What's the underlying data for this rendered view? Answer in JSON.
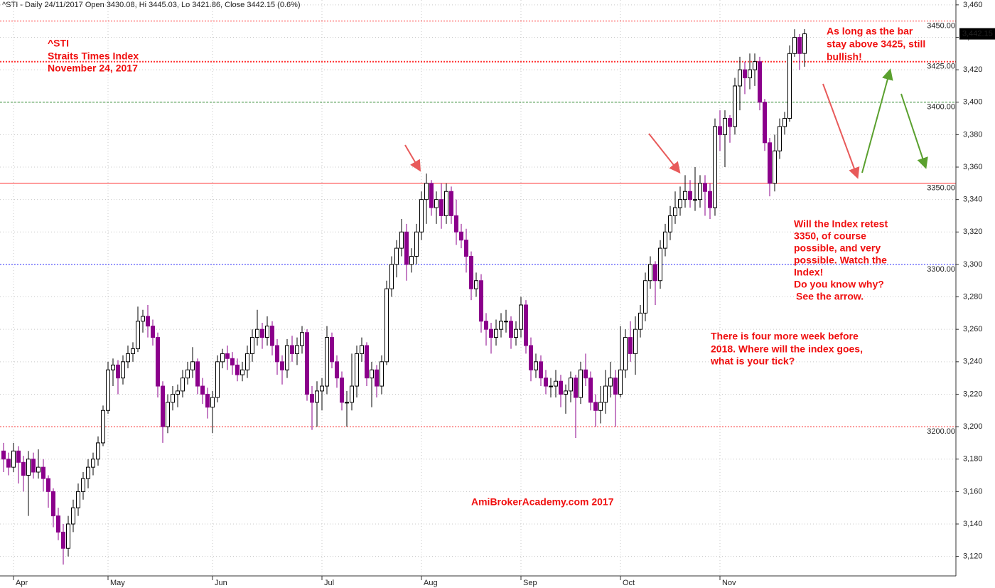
{
  "chart_data": {
    "type": "candlestick",
    "title": "^STI - Daily 24/11/2017 Open 3430.08, Hi 3445.03, Lo 3421.86, Close 3442.15 (0.6%)",
    "categories": [
      null,
      null,
      "Apr",
      null,
      null,
      null,
      null,
      null,
      null,
      null,
      null,
      null,
      null,
      null,
      null,
      null,
      null,
      null,
      null,
      null,
      null,
      "May",
      null,
      null,
      null,
      null,
      null,
      null,
      null,
      null,
      null,
      null,
      null,
      null,
      null,
      null,
      null,
      null,
      null,
      null,
      null,
      null,
      "Jun",
      null,
      null,
      null,
      null,
      null,
      null,
      null,
      null,
      null,
      null,
      null,
      null,
      null,
      null,
      null,
      null,
      null,
      null,
      null,
      null,
      null,
      "Jul",
      null,
      null,
      null,
      null,
      null,
      null,
      null,
      null,
      null,
      null,
      null,
      null,
      null,
      null,
      null,
      null,
      null,
      null,
      null,
      "Aug",
      null,
      null,
      null,
      null,
      null,
      null,
      null,
      null,
      null,
      null,
      null,
      null,
      null,
      null,
      null,
      null,
      null,
      null,
      null,
      "Sep",
      null,
      null,
      null,
      null,
      null,
      null,
      null,
      null,
      null,
      null,
      null,
      null,
      null,
      null,
      null,
      null,
      null,
      null,
      null,
      "Oct",
      null,
      null,
      null,
      null,
      null,
      null,
      null,
      null,
      null,
      null,
      null,
      null,
      null,
      null,
      null,
      null,
      null,
      null,
      null,
      "Nov",
      null,
      null,
      null,
      null,
      null,
      null,
      null,
      null,
      null,
      null,
      null,
      null,
      null,
      null,
      null,
      null,
      null
    ],
    "open": [
      3185,
      3180,
      3175,
      3185,
      3178,
      3170,
      3180,
      3172,
      3175,
      3168,
      3160,
      3145,
      3135,
      3125,
      3140,
      3150,
      3160,
      3168,
      3175,
      3180,
      3190,
      3210,
      3235,
      3238,
      3230,
      3240,
      3245,
      3248,
      3265,
      3268,
      3262,
      3255,
      3225,
      3200,
      3215,
      3220,
      3222,
      3230,
      3235,
      3240,
      3225,
      3220,
      3212,
      3218,
      3240,
      3245,
      3242,
      3238,
      3232,
      3235,
      3245,
      3255,
      3260,
      3255,
      3262,
      3250,
      3240,
      3235,
      3250,
      3245,
      3250,
      3258,
      3220,
      3215,
      3222,
      3225,
      3255,
      3240,
      3230,
      3215,
      3215,
      3225,
      3245,
      3250,
      3230,
      3235,
      3225,
      3240,
      3285,
      3300,
      3310,
      3320,
      3300,
      3305,
      3320,
      3340,
      3350,
      3335,
      3340,
      3330,
      3345,
      3330,
      3320,
      3315,
      3305,
      3285,
      3290,
      3265,
      3260,
      3255,
      3260,
      3265,
      3265,
      3255,
      3260,
      3275,
      3250,
      3235,
      3240,
      3230,
      3225,
      3225,
      3228,
      3220,
      3222,
      3230,
      3218,
      3235,
      3230,
      3215,
      3210,
      3215,
      3225,
      3230,
      3220,
      3235,
      3255,
      3245,
      3260,
      3270,
      3290,
      3300,
      3290,
      3310,
      3320,
      3330,
      3335,
      3340,
      3345,
      3340,
      3340,
      3350,
      3345,
      3335,
      3385,
      3380,
      3390,
      3385,
      3410,
      3420,
      3415,
      3420,
      3425,
      3400,
      3375,
      3350,
      3370,
      3385,
      3390,
      3430,
      3440,
      3430.08
    ],
    "high": [
      3190,
      3184,
      3190,
      3188,
      3182,
      3185,
      3184,
      3186,
      3180,
      3170,
      3162,
      3150,
      3140,
      3145,
      3155,
      3165,
      3172,
      3180,
      3184,
      3194,
      3213,
      3240,
      3242,
      3241,
      3244,
      3250,
      3252,
      3274,
      3272,
      3275,
      3266,
      3258,
      3228,
      3220,
      3225,
      3226,
      3235,
      3240,
      3249,
      3242,
      3230,
      3224,
      3222,
      3244,
      3248,
      3250,
      3246,
      3242,
      3240,
      3250,
      3260,
      3272,
      3264,
      3268,
      3265,
      3254,
      3244,
      3254,
      3256,
      3255,
      3262,
      3260,
      3225,
      3228,
      3230,
      3262,
      3258,
      3244,
      3234,
      3222,
      3245,
      3250,
      3255,
      3252,
      3240,
      3238,
      3244,
      3290,
      3305,
      3315,
      3328,
      3325,
      3310,
      3325,
      3345,
      3356,
      3352,
      3345,
      3350,
      3350,
      3348,
      3340,
      3325,
      3322,
      3308,
      3295,
      3294,
      3270,
      3264,
      3266,
      3270,
      3272,
      3268,
      3265,
      3280,
      3278,
      3255,
      3245,
      3244,
      3235,
      3230,
      3235,
      3232,
      3226,
      3234,
      3232,
      3240,
      3245,
      3234,
      3220,
      3225,
      3235,
      3240,
      3235,
      3262,
      3260,
      3265,
      3268,
      3275,
      3295,
      3305,
      3302,
      3315,
      3325,
      3336,
      3345,
      3348,
      3355,
      3352,
      3360,
      3355,
      3355,
      3350,
      3390,
      3395,
      3395,
      3392,
      3415,
      3428,
      3425,
      3430,
      3430,
      3428,
      3402,
      3378,
      3380,
      3390,
      3394,
      3435,
      3445,
      3442,
      3445.03
    ],
    "low": [
      3172,
      3170,
      3172,
      3165,
      3160,
      3145,
      3168,
      3168,
      3160,
      3150,
      3138,
      3130,
      3115,
      3120,
      3135,
      3145,
      3155,
      3162,
      3170,
      3176,
      3188,
      3208,
      3225,
      3220,
      3226,
      3236,
      3240,
      3246,
      3258,
      3255,
      3250,
      3218,
      3190,
      3196,
      3210,
      3212,
      3218,
      3226,
      3230,
      3220,
      3214,
      3205,
      3196,
      3215,
      3236,
      3235,
      3232,
      3228,
      3228,
      3230,
      3240,
      3250,
      3248,
      3250,
      3244,
      3232,
      3226,
      3230,
      3240,
      3238,
      3245,
      3216,
      3198,
      3200,
      3210,
      3220,
      3236,
      3224,
      3210,
      3200,
      3210,
      3218,
      3240,
      3225,
      3212,
      3218,
      3220,
      3238,
      3280,
      3292,
      3305,
      3290,
      3295,
      3300,
      3315,
      3325,
      3330,
      3325,
      3322,
      3325,
      3325,
      3312,
      3310,
      3295,
      3278,
      3280,
      3258,
      3250,
      3245,
      3250,
      3255,
      3258,
      3248,
      3250,
      3255,
      3245,
      3228,
      3230,
      3225,
      3220,
      3218,
      3218,
      3212,
      3208,
      3215,
      3193,
      3214,
      3225,
      3210,
      3200,
      3202,
      3208,
      3218,
      3200,
      3218,
      3230,
      3240,
      3232,
      3255,
      3265,
      3285,
      3275,
      3285,
      3305,
      3315,
      3325,
      3330,
      3335,
      3335,
      3333,
      3335,
      3330,
      3328,
      3330,
      3370,
      3360,
      3375,
      3380,
      3395,
      3405,
      3408,
      3410,
      3395,
      3370,
      3342,
      3345,
      3365,
      3380,
      3388,
      3428,
      3420,
      3421.86
    ],
    "close": [
      3180,
      3175,
      3185,
      3178,
      3170,
      3180,
      3172,
      3175,
      3168,
      3160,
      3145,
      3135,
      3125,
      3140,
      3150,
      3160,
      3168,
      3175,
      3180,
      3190,
      3210,
      3235,
      3238,
      3230,
      3240,
      3245,
      3248,
      3265,
      3268,
      3262,
      3255,
      3225,
      3200,
      3215,
      3220,
      3222,
      3230,
      3235,
      3240,
      3225,
      3220,
      3212,
      3218,
      3240,
      3245,
      3242,
      3238,
      3232,
      3235,
      3245,
      3255,
      3260,
      3255,
      3262,
      3250,
      3240,
      3235,
      3250,
      3245,
      3250,
      3258,
      3220,
      3215,
      3222,
      3225,
      3255,
      3240,
      3230,
      3215,
      3215,
      3225,
      3245,
      3250,
      3230,
      3235,
      3225,
      3240,
      3285,
      3300,
      3310,
      3320,
      3300,
      3305,
      3320,
      3340,
      3350,
      3335,
      3340,
      3330,
      3345,
      3330,
      3320,
      3315,
      3305,
      3285,
      3290,
      3265,
      3260,
      3255,
      3260,
      3265,
      3265,
      3255,
      3260,
      3275,
      3250,
      3235,
      3240,
      3230,
      3225,
      3225,
      3228,
      3220,
      3222,
      3230,
      3218,
      3235,
      3230,
      3215,
      3210,
      3215,
      3225,
      3230,
      3220,
      3235,
      3255,
      3245,
      3260,
      3270,
      3290,
      3300,
      3290,
      3310,
      3320,
      3330,
      3335,
      3340,
      3345,
      3340,
      3340,
      3350,
      3345,
      3335,
      3385,
      3380,
      3390,
      3385,
      3410,
      3420,
      3415,
      3420,
      3425,
      3400,
      3375,
      3350,
      3370,
      3385,
      3390,
      3430,
      3440,
      3430,
      3442.15
    ],
    "last_label": "3,442.15",
    "up_color": "#ffffff",
    "down_color": "#8b008b",
    "ylim": [
      3108,
      3463
    ],
    "yticks": [
      {
        "value": 3120,
        "label": "3,120"
      },
      {
        "value": 3140,
        "label": "3,140"
      },
      {
        "value": 3160,
        "label": "3,160"
      },
      {
        "value": 3180,
        "label": "3,180"
      },
      {
        "value": 3200,
        "label": "3,200"
      },
      {
        "value": 3220,
        "label": "3,220"
      },
      {
        "value": 3240,
        "label": "3,240"
      },
      {
        "value": 3260,
        "label": "3,260"
      },
      {
        "value": 3280,
        "label": "3,280"
      },
      {
        "value": 3300,
        "label": "3,300"
      },
      {
        "value": 3320,
        "label": "3,320"
      },
      {
        "value": 3340,
        "label": "3,340"
      },
      {
        "value": 3360,
        "label": "3,360"
      },
      {
        "value": 3380,
        "label": "3,380"
      },
      {
        "value": 3400,
        "label": "3,400"
      },
      {
        "value": 3420,
        "label": "3,420"
      },
      {
        "value": 3440,
        "label": "3,440"
      },
      {
        "value": 3460,
        "label": "3,460"
      }
    ],
    "grid": true,
    "levels": [
      {
        "value": 3450,
        "label": "3450.00",
        "color": "#ff3333",
        "style": "dotted"
      },
      {
        "value": 3425,
        "label": "3425.00",
        "color": "#ff3333",
        "style": "dotted-bold"
      },
      {
        "value": 3400,
        "label": "3400.00",
        "color": "#2e8b2e",
        "style": "dashed"
      },
      {
        "value": 3350,
        "label": "3350.00",
        "color": "#ff3333",
        "style": "solid"
      },
      {
        "value": 3300,
        "label": "3300.00",
        "color": "#3333ff",
        "style": "dotted"
      },
      {
        "value": 3200,
        "label": "3200.00",
        "color": "#ff3333",
        "style": "dotted"
      }
    ],
    "annotations": [
      [
        "^STI",
        "Straits Times Index",
        "November 24, 2017"
      ],
      [
        "As long as the bar",
        "stay above 3425, still",
        "bullish!"
      ],
      [
        "Will the Index retest",
        "3350, of course",
        "possible, and very",
        "possible. Watch the",
        "Index!",
        "Do you know why?",
        "See the arrow."
      ],
      [
        "There is four more week before",
        "2018. Where will the index goes,",
        "what is your tick?"
      ],
      [
        "AmiBrokerAcademy.com  2017"
      ]
    ]
  }
}
